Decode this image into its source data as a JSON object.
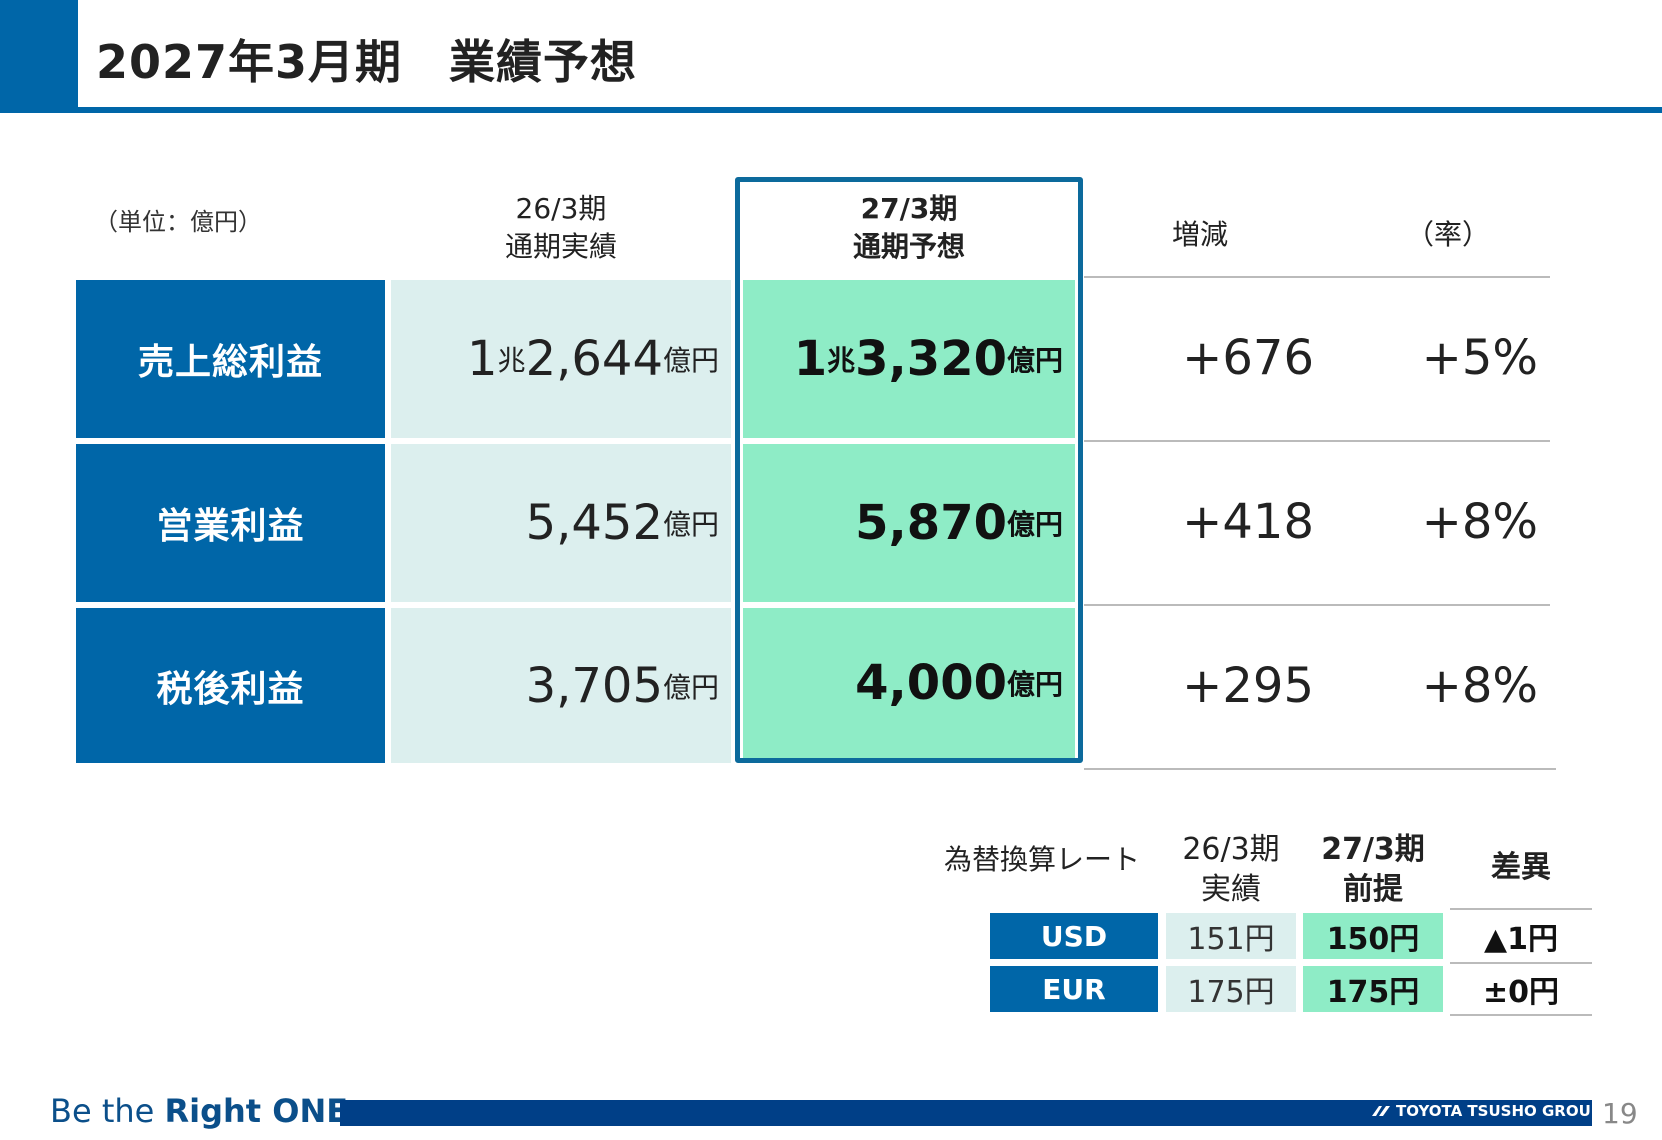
{
  "header": {
    "title": "2027年3月期　業績予想"
  },
  "main_table": {
    "unit_label": "（単位：億円）",
    "col_actual": {
      "line1": "26/3期",
      "line2": "通期実績"
    },
    "col_forecast": {
      "line1": "27/3期",
      "line2": "通期予想"
    },
    "col_diff": "増減",
    "col_rate": "（率）",
    "rows": [
      {
        "label": "売上総利益",
        "actual": {
          "a": "1",
          "b": "兆",
          "c": "2,644",
          "u": "億円"
        },
        "forecast": {
          "a": "1",
          "b": "兆",
          "c": "3,320",
          "u": "億円"
        },
        "diff": "+676",
        "rate": "+5%"
      },
      {
        "label": "営業利益",
        "actual": {
          "a": "",
          "b": "",
          "c": "5,452",
          "u": "億円"
        },
        "forecast": {
          "a": "",
          "b": "",
          "c": "5,870",
          "u": "億円"
        },
        "diff": "+418",
        "rate": "+8%"
      },
      {
        "label": "税後利益",
        "actual": {
          "a": "",
          "b": "",
          "c": "3,705",
          "u": "億円"
        },
        "forecast": {
          "a": "",
          "b": "",
          "c": "4,000",
          "u": "億円"
        },
        "diff": "+295",
        "rate": "+8%"
      }
    ]
  },
  "fx_table": {
    "title": "為替換算レート",
    "col_actual": {
      "line1": "26/3期",
      "line2": "実績"
    },
    "col_forecast": {
      "line1": "27/3期",
      "line2": "前提"
    },
    "col_diff": "差異",
    "rows": [
      {
        "currency": "USD",
        "actual": "151円",
        "forecast": "150円",
        "diff": "▲1円"
      },
      {
        "currency": "EUR",
        "actual": "175円",
        "forecast": "175円",
        "diff": "±0円"
      }
    ]
  },
  "footer": {
    "slogan_pre": "Be the ",
    "slogan_bold": "Right ONE",
    "group_name": "TOYOTA TSUSHO GROUP",
    "page_number": "19"
  },
  "colors": {
    "brand_blue": "#0066a8",
    "actual_bg": "#dcefee",
    "forecast_bg": "#8eecc6"
  }
}
